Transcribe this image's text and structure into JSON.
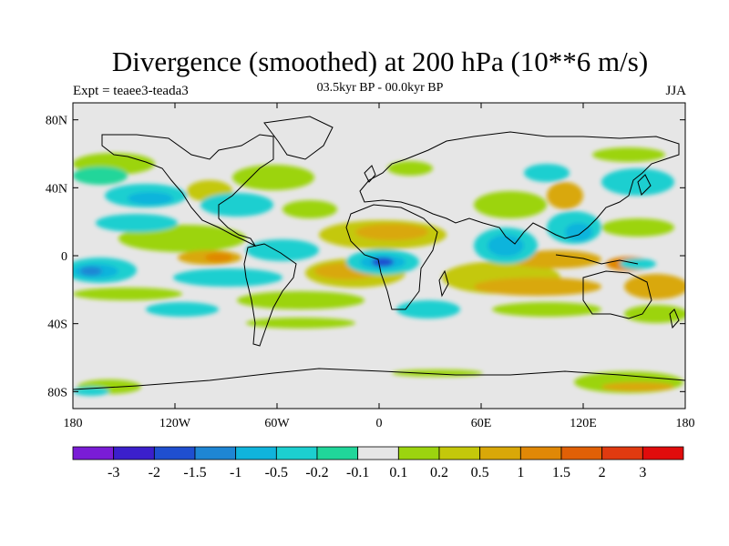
{
  "title": "Divergence (smoothed) at 200 hPa (10**6 m/s)",
  "subtitle": "03.5kyr BP - 00.0kyr BP",
  "experiment": "Expt = teaee3-teada3",
  "season": "JJA",
  "map": {
    "lat_ticks": [
      "80N",
      "40N",
      "0",
      "40S",
      "80S"
    ],
    "lon_ticks": [
      "180",
      "120W",
      "60W",
      "0",
      "60E",
      "120E",
      "180"
    ],
    "background_color": "#e6e6e6",
    "coastline_color": "#000000"
  },
  "colorbar": {
    "labels": [
      "-3",
      "-2",
      "-1.5",
      "-1",
      "-0.5",
      "-0.2",
      "-0.1",
      "0.1",
      "0.2",
      "0.5",
      "1",
      "1.5",
      "2",
      "3"
    ],
    "colors": [
      "#7a1cd6",
      "#3b1fcc",
      "#1f4fd0",
      "#1e86d4",
      "#10b4dc",
      "#1ccfd0",
      "#20d69a",
      "#e6e6e6",
      "#9cd40f",
      "#c4c80a",
      "#d9a808",
      "#e08806",
      "#e06006",
      "#e03a10",
      "#e00c0c"
    ]
  }
}
